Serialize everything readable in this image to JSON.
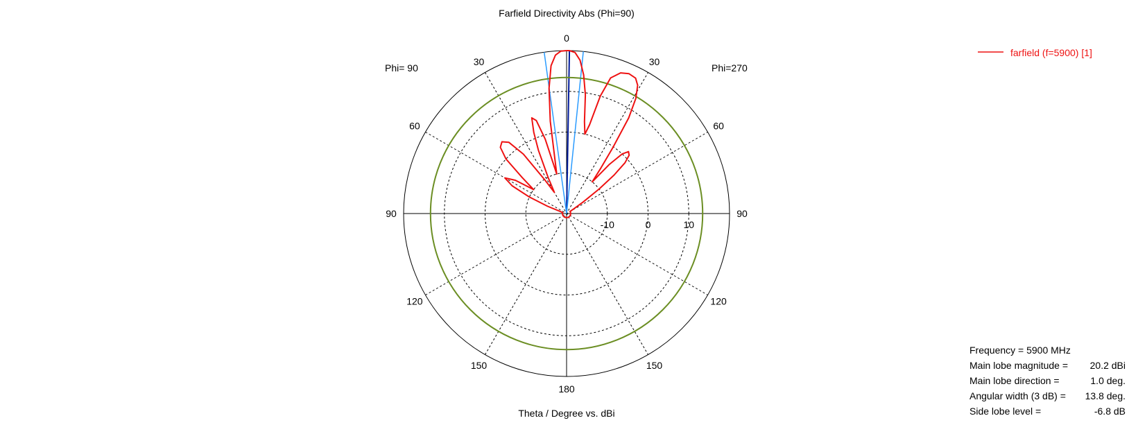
{
  "chart_data": {
    "type": "polar-line",
    "title": "Farfield Directivity Abs (Phi=90)",
    "xlabel": "Theta / Degree vs. dBi",
    "left_half_label": "Phi= 90",
    "right_half_label": "Phi=270",
    "angle_ticks_left": [
      "0",
      "30",
      "60",
      "90",
      "120",
      "150",
      "180"
    ],
    "angle_ticks_right": [
      "30",
      "60",
      "90",
      "120",
      "150"
    ],
    "radial_ticks": [
      "-10",
      "0",
      "10"
    ],
    "r_range_dBi": [
      -20,
      20
    ],
    "grid": true,
    "legend_position": "top-right",
    "series": [
      {
        "name": "farfield (f=5900) [1]",
        "color": "#ee1111",
        "theta_deg": [
          0,
          1,
          3,
          5,
          7,
          9,
          11,
          13,
          14.5,
          16,
          18,
          21,
          24,
          27,
          29,
          31,
          33,
          35,
          37,
          39,
          41,
          43,
          45,
          47,
          49,
          51,
          53,
          55,
          57,
          59,
          61,
          63,
          65,
          67,
          69,
          72,
          75,
          78,
          82,
          86,
          90,
          96,
          105,
          115,
          125,
          135,
          145,
          155,
          165,
          175,
          180,
          175,
          165,
          155,
          145,
          135,
          125,
          115,
          105,
          97,
          92,
          88,
          84,
          80,
          76,
          72,
          69,
          66,
          63,
          60,
          57,
          54,
          51,
          48,
          45,
          42,
          39,
          36,
          33,
          30,
          27,
          24,
          22,
          20,
          18,
          16,
          14,
          12,
          10,
          8,
          6,
          4,
          2,
          0
        ],
        "side": [
          "R",
          "R",
          "R",
          "R",
          "R",
          "R",
          "R",
          "R",
          "R",
          "R",
          "R",
          "R",
          "R",
          "R",
          "R",
          "R",
          "R",
          "R",
          "R",
          "R",
          "R",
          "R",
          "R",
          "R",
          "R",
          "R",
          "R",
          "R",
          "R",
          "R",
          "R",
          "R",
          "R",
          "R",
          "R",
          "R",
          "R",
          "R",
          "R",
          "R",
          "R",
          "R",
          "R",
          "R",
          "R",
          "R",
          "R",
          "R",
          "R",
          "R",
          "R",
          "L",
          "L",
          "L",
          "L",
          "L",
          "L",
          "L",
          "L",
          "L",
          "L",
          "L",
          "L",
          "L",
          "L",
          "L",
          "L",
          "L",
          "L",
          "L",
          "L",
          "L",
          "L",
          "L",
          "L",
          "L",
          "L",
          "L",
          "L",
          "L",
          "L",
          "L",
          "L",
          "L",
          "L",
          "L",
          "L",
          "L",
          "L",
          "L",
          "L",
          "L",
          "L",
          "L"
        ],
        "dBi": [
          20.1,
          20.2,
          19.6,
          17.8,
          14.3,
          9.5,
          3.0,
          0.0,
          2.5,
          10.0,
          15.0,
          17.0,
          17.6,
          17.3,
          16.0,
          13.0,
          8.0,
          0.0,
          -6.0,
          -10.0,
          -4.0,
          0.0,
          1.5,
          1.0,
          -1.0,
          -5.0,
          -10.0,
          -15.0,
          -18.0,
          -19.0,
          -19.0,
          -19.0,
          -19.0,
          -19.0,
          -19.0,
          -19.0,
          -19.0,
          -19.0,
          -19.0,
          -19.0,
          -19.0,
          -19.0,
          -19.0,
          -19.0,
          -19.0,
          -19.0,
          -19.0,
          -19.0,
          -19.0,
          -19.0,
          -19.0,
          -19.0,
          -19.0,
          -19.0,
          -19.0,
          -19.0,
          -19.0,
          -19.0,
          -19.0,
          -19.0,
          -19.0,
          -19.0,
          -19.0,
          -19.0,
          -19.0,
          -18.5,
          -15.0,
          -10.0,
          -5.0,
          -2.5,
          -5.0,
          -10.0,
          -6.0,
          0.0,
          3.0,
          3.7,
          2.5,
          -2.0,
          -10.0,
          -14.0,
          -10.0,
          -3.0,
          1.5,
          5.0,
          4.0,
          -1.0,
          -10.0,
          -6.0,
          3.0,
          11.0,
          16.5,
          19.0,
          19.9,
          20.1
        ]
      }
    ],
    "reference_lines": [
      {
        "name": "main lobe direction",
        "color": "#001a9a",
        "theta_deg": 1.0
      },
      {
        "name": "3 dB angular width",
        "color": "#2a9bff",
        "theta_deg": [
          -7.9,
          5.9
        ]
      },
      {
        "name": "side lobe level",
        "color": "#6b8e23",
        "dBi": 13.4
      }
    ]
  },
  "stats": [
    {
      "label": "Frequency = 5900 MHz",
      "value": ""
    },
    {
      "label": "Main lobe magnitude =",
      "value": "20.2 dBi"
    },
    {
      "label": "Main lobe direction =",
      "value": "1.0 deg."
    },
    {
      "label": "Angular width (3 dB) =",
      "value": "13.8 deg."
    },
    {
      "label": "Side lobe level =",
      "value": "-6.8 dB"
    }
  ]
}
